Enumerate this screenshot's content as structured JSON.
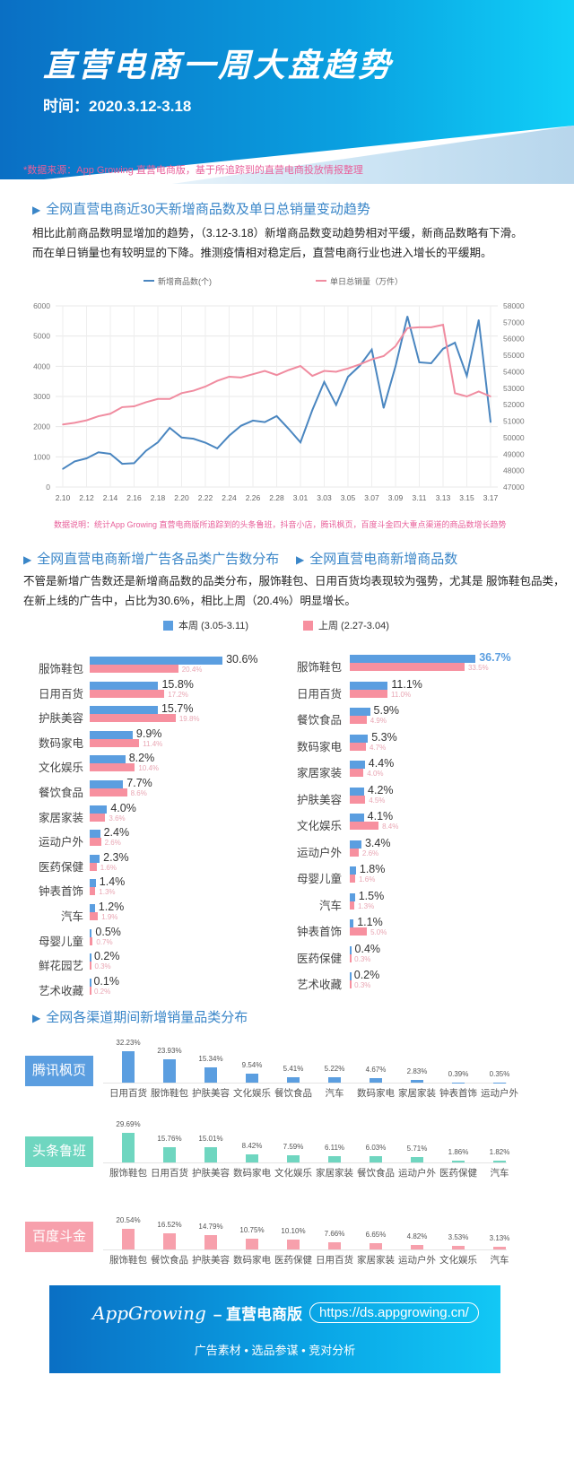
{
  "header": {
    "title": "直营电商一周大盘趋势",
    "time": "时间：2020.3.12-3.18"
  },
  "source_note": "*数据来源：App Growing 直营电商版，基于所追踪到的直营电商投放情报整理",
  "section1": {
    "title": "全网直营电商近30天新增商品数及单日总销量变动趋势",
    "para": [
      "相比此前商品数明显增加的趋势，（3.12-3.18）新增商品数变动趋势相对平缓，新商品数略有下滑。",
      "而在单日销量也有较明显的下降。推测疫情相对稳定后，直营电商行业也进入增长的平缓期。"
    ],
    "note": "数据说明：统计App Growing 直营电商版所追踪到的头条鲁班，抖音小店，腾讯枫页，百度斗金四大重点渠道的商品数增长趋势"
  },
  "section2": {
    "title_left": "全网直营电商新增广告各品类广告数分布",
    "title_right": "全网直营电商新增商品数",
    "para": [
      "不管是新增广告数还是新增商品数的品类分布，服饰鞋包、日用百货均表现较为强势，尤其是 服饰鞋包品类，",
      "在新上线的广告中，占比为30.6%，相比上周（20.4%）明显增长。"
    ],
    "legend_this": "本周 (3.05-3.11)",
    "legend_last": "上周 (2.27-3.04)"
  },
  "section3": {
    "title": "全网各渠道期间新增销量品类分布"
  },
  "footer": {
    "brand": "AppGrowing",
    "product": "– 直营电商版",
    "url": "https://ds.appgrowing.cn/",
    "features": "广告素材  •  选品参谋  •  竞对分析"
  },
  "colors": {
    "blue": "#4a86c0",
    "pink": "#f08ca0",
    "bar_blue": "#5b9ee0",
    "bar_pink": "#f7909f",
    "tencent": "#5b9ee0",
    "toutiao": "#6fd6c0",
    "baidu": "#f7a0ac"
  },
  "chart_data": [
    {
      "type": "line",
      "title": "全网直营电商近30天新增商品数及单日总销量变动趋势",
      "x": [
        "2.10",
        "2.11",
        "2.12",
        "2.13",
        "2.14",
        "2.15",
        "2.16",
        "2.17",
        "2.18",
        "2.19",
        "2.20",
        "2.21",
        "2.22",
        "2.23",
        "2.24",
        "2.25",
        "2.26",
        "2.27",
        "2.28",
        "2.29",
        "3.01",
        "3.02",
        "3.03",
        "3.04",
        "3.05",
        "3.06",
        "3.07",
        "3.08",
        "3.09",
        "3.10",
        "3.11",
        "3.12",
        "3.13",
        "3.14",
        "3.15",
        "3.16",
        "3.17"
      ],
      "x_ticks": [
        "2.10",
        "2.12",
        "2.14",
        "2.16",
        "2.18",
        "2.20",
        "2.22",
        "2.24",
        "2.26",
        "2.28",
        "3.01",
        "3.03",
        "3.05",
        "3.07",
        "3.09",
        "3.11",
        "3.13",
        "3.15",
        "3.17"
      ],
      "y_left_ticks": [
        "0",
        "1000",
        "2000",
        "3000",
        "4000",
        "5000",
        "6000"
      ],
      "ylim_left": [
        0,
        6000
      ],
      "y_right_ticks": [
        "47000",
        "48000",
        "49000",
        "50000",
        "51000",
        "52000",
        "53000",
        "54000",
        "55000",
        "56000",
        "57000",
        "58000"
      ],
      "ylim_right": [
        47000,
        58000
      ],
      "series": [
        {
          "name": "新增商品数(个)",
          "axis": "left",
          "values": [
            600,
            850,
            950,
            1150,
            1100,
            770,
            790,
            1200,
            1480,
            1960,
            1640,
            1600,
            1470,
            1280,
            1700,
            2030,
            2200,
            2150,
            2350,
            1930,
            1480,
            2550,
            3480,
            2720,
            3650,
            4020,
            4550,
            2620,
            4000,
            5650,
            4130,
            4100,
            4580,
            4780,
            3680,
            5530,
            2150
          ]
        },
        {
          "name": "单日总销量（万件）",
          "axis": "right",
          "values": [
            50800,
            50900,
            51050,
            51300,
            51450,
            51850,
            51900,
            52150,
            52350,
            52350,
            52700,
            52850,
            53100,
            53450,
            53700,
            53650,
            53850,
            54050,
            53800,
            54100,
            54350,
            53750,
            54050,
            54000,
            54200,
            54450,
            54750,
            54950,
            55550,
            56650,
            56700,
            56700,
            56850,
            52700,
            52500,
            52800,
            52500
          ]
        }
      ]
    },
    {
      "type": "bar",
      "title": "全网直营电商新增广告各品类广告数分布",
      "categories": [
        "服饰鞋包",
        "日用百货",
        "护肤美容",
        "数码家电",
        "文化娱乐",
        "餐饮食品",
        "家居家装",
        "运动户外",
        "医药保健",
        "钟表首饰",
        "汽车",
        "母婴儿童",
        "鲜花园艺",
        "艺术收藏"
      ],
      "series": [
        {
          "name": "本周 (3.05-3.11)",
          "values": [
            30.6,
            15.8,
            15.7,
            9.9,
            8.2,
            7.7,
            4.0,
            2.4,
            2.3,
            1.4,
            1.2,
            0.5,
            0.2,
            0.1
          ]
        },
        {
          "name": "上周 (2.27-3.04)",
          "values": [
            20.4,
            17.2,
            19.8,
            11.4,
            10.4,
            8.6,
            3.6,
            2.6,
            1.6,
            1.3,
            1.9,
            0.7,
            0.3,
            0.2
          ]
        }
      ]
    },
    {
      "type": "bar",
      "title": "全网直营电商新增商品数",
      "categories": [
        "服饰鞋包",
        "日用百货",
        "餐饮食品",
        "数码家电",
        "家居家装",
        "护肤美容",
        "文化娱乐",
        "运动户外",
        "母婴儿童",
        "汽车",
        "钟表首饰",
        "医药保健",
        "艺术收藏"
      ],
      "series": [
        {
          "name": "本周 (3.05-3.11)",
          "values": [
            36.7,
            11.1,
            5.9,
            5.3,
            4.4,
            4.2,
            4.1,
            3.4,
            1.8,
            1.5,
            1.1,
            0.4,
            0.2
          ]
        },
        {
          "name": "上周 (2.27-3.04)",
          "values": [
            33.5,
            11.0,
            4.9,
            4.7,
            4.0,
            4.5,
            8.4,
            2.6,
            1.6,
            1.3,
            5.0,
            0.3,
            0.3
          ]
        }
      ]
    },
    {
      "type": "bar",
      "title": "腾讯枫页",
      "categories": [
        "日用百货",
        "服饰鞋包",
        "护肤美容",
        "文化娱乐",
        "餐饮食品",
        "汽车",
        "数码家电",
        "家居家装",
        "钟表首饰",
        "运动户外"
      ],
      "values": [
        32.23,
        23.93,
        15.34,
        9.54,
        5.41,
        5.22,
        4.67,
        2.83,
        0.39,
        0.35
      ]
    },
    {
      "type": "bar",
      "title": "头条鲁班",
      "categories": [
        "服饰鞋包",
        "日用百货",
        "护肤美容",
        "数码家电",
        "文化娱乐",
        "家居家装",
        "餐饮食品",
        "运动户外",
        "医药保健",
        "汽车"
      ],
      "values": [
        29.69,
        15.76,
        15.01,
        8.42,
        7.59,
        6.11,
        6.03,
        5.71,
        1.86,
        1.82
      ]
    },
    {
      "type": "bar",
      "title": "百度斗金",
      "categories": [
        "服饰鞋包",
        "餐饮食品",
        "护肤美容",
        "数码家电",
        "医药保健",
        "日用百货",
        "家居家装",
        "运动户外",
        "文化娱乐",
        "汽车"
      ],
      "values": [
        20.54,
        16.52,
        14.79,
        10.75,
        10.1,
        7.66,
        6.65,
        4.82,
        3.53,
        3.13
      ]
    }
  ]
}
